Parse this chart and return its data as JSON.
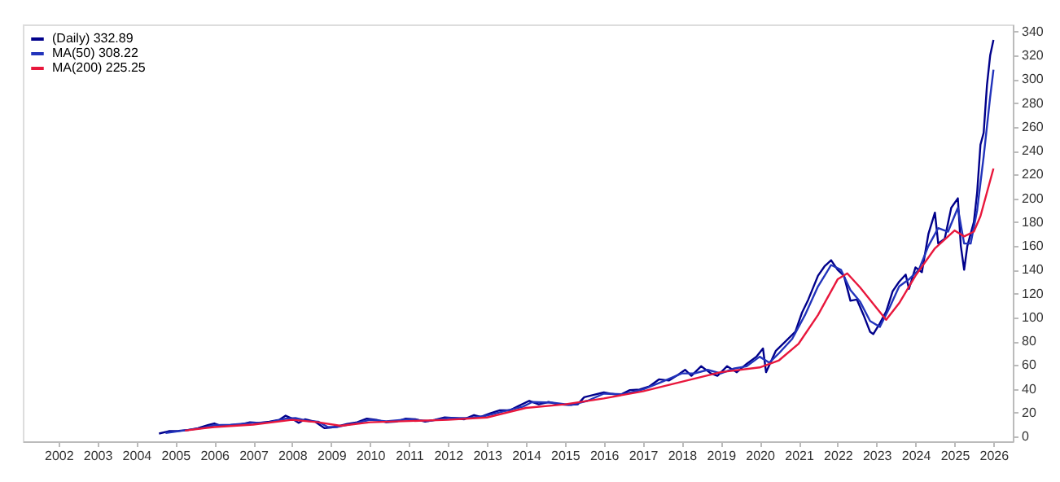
{
  "chart_data": {
    "type": "line",
    "legend": "top left",
    "xlim": [
      "2001-02",
      "2026-07"
    ],
    "ylim": [
      -4,
      346
    ],
    "xticks": [
      "2002",
      "2003",
      "2004",
      "2005",
      "2006",
      "2007",
      "2008",
      "2009",
      "2010",
      "2011",
      "2012",
      "2013",
      "2014",
      "2015",
      "2016",
      "2017",
      "2018",
      "2019",
      "2020",
      "2021",
      "2022",
      "2023",
      "2024",
      "2025",
      "2026"
    ],
    "yticks": [
      0,
      20,
      40,
      60,
      80,
      100,
      120,
      140,
      160,
      180,
      200,
      220,
      240,
      260,
      280,
      300,
      320,
      340
    ],
    "series": [
      {
        "name": "(Daily) 332.89",
        "color": "#00008b",
        "x": [
          "2004-08",
          "2004-11",
          "2005-02",
          "2005-05",
          "2005-08",
          "2005-11",
          "2006-01",
          "2006-03",
          "2006-06",
          "2006-09",
          "2006-12",
          "2007-03",
          "2007-06",
          "2007-09",
          "2007-11",
          "2008-01",
          "2008-03",
          "2008-05",
          "2008-08",
          "2008-11",
          "2009-01",
          "2009-03",
          "2009-06",
          "2009-09",
          "2009-12",
          "2010-03",
          "2010-06",
          "2010-09",
          "2010-12",
          "2011-03",
          "2011-06",
          "2011-09",
          "2011-12",
          "2012-03",
          "2012-06",
          "2012-09",
          "2012-11",
          "2013-02",
          "2013-05",
          "2013-08",
          "2013-11",
          "2014-02",
          "2014-05",
          "2014-08",
          "2014-11",
          "2015-02",
          "2015-05",
          "2015-07",
          "2015-10",
          "2016-01",
          "2016-03",
          "2016-06",
          "2016-09",
          "2016-12",
          "2017-03",
          "2017-06",
          "2017-09",
          "2017-12",
          "2018-02",
          "2018-04",
          "2018-07",
          "2018-10",
          "2018-12",
          "2019-03",
          "2019-06",
          "2019-09",
          "2019-12",
          "2020-02",
          "2020-03",
          "2020-06",
          "2020-09",
          "2020-12",
          "2021-02",
          "2021-04",
          "2021-07",
          "2021-09",
          "2021-11",
          "2022-01",
          "2022-03",
          "2022-05",
          "2022-07",
          "2022-09",
          "2022-11",
          "2022-12",
          "2023-02",
          "2023-04",
          "2023-06",
          "2023-08",
          "2023-10",
          "2023-11",
          "2024-01",
          "2024-03",
          "2024-05",
          "2024-07",
          "2024-08",
          "2024-10",
          "2024-12",
          "2025-02",
          "2025-03",
          "2025-04",
          "2025-05",
          "2025-07",
          "2025-08",
          "2025-09",
          "2025-10",
          "2025-11",
          "2025-12",
          "2026-01"
        ],
        "values": [
          2.5,
          4.5,
          4.8,
          5.5,
          7,
          9.5,
          11,
          9,
          9.5,
          10,
          12,
          11.5,
          12.5,
          14,
          17.5,
          15,
          11.5,
          14.5,
          12.5,
          7,
          7.5,
          8.5,
          10.5,
          12,
          15,
          14,
          12,
          12.5,
          15,
          14.5,
          12.5,
          14,
          16,
          15.5,
          14.5,
          18,
          16.5,
          19.5,
          22,
          22,
          26,
          30,
          27,
          29,
          27,
          26.5,
          27,
          33,
          35,
          37,
          36,
          35,
          39,
          39.5,
          42,
          48,
          47,
          52,
          56,
          51,
          59,
          53,
          51,
          59,
          54,
          61,
          67,
          74,
          54,
          72,
          80,
          88,
          104,
          115,
          135,
          143,
          148,
          140,
          135,
          114,
          115,
          102,
          88,
          86,
          95,
          105,
          122,
          130,
          136,
          124,
          142,
          138,
          170,
          188,
          162,
          166,
          192,
          200,
          160,
          140,
          160,
          180,
          205,
          245,
          255,
          295,
          320,
          333
        ]
      },
      {
        "name": "MA(50) 308.22",
        "color": "#2233bb",
        "x": [
          "2004-10",
          "2005-03",
          "2005-09",
          "2006-01",
          "2006-06",
          "2007-01",
          "2007-06",
          "2007-11",
          "2008-02",
          "2008-06",
          "2008-09",
          "2008-12",
          "2009-03",
          "2009-08",
          "2010-01",
          "2010-06",
          "2011-01",
          "2011-07",
          "2012-01",
          "2012-07",
          "2012-12",
          "2013-06",
          "2013-12",
          "2014-03",
          "2014-09",
          "2015-03",
          "2015-08",
          "2016-01",
          "2016-07",
          "2017-01",
          "2017-07",
          "2018-01",
          "2018-05",
          "2018-09",
          "2019-01",
          "2019-05",
          "2019-09",
          "2020-01",
          "2020-04",
          "2020-07",
          "2020-11",
          "2021-03",
          "2021-07",
          "2021-11",
          "2022-02",
          "2022-05",
          "2022-08",
          "2022-11",
          "2023-02",
          "2023-05",
          "2023-08",
          "2023-11",
          "2024-02",
          "2024-05",
          "2024-08",
          "2024-11",
          "2025-02",
          "2025-04",
          "2025-06",
          "2025-08",
          "2025-10",
          "2025-12",
          "2026-01"
        ],
        "values": [
          3,
          4.8,
          7,
          9.5,
          9.8,
          11.5,
          12,
          15,
          15.5,
          13,
          12.5,
          8,
          8,
          11,
          14,
          12.8,
          14.5,
          13,
          15.5,
          15.5,
          17,
          21,
          25,
          29,
          28.5,
          26.5,
          30,
          36,
          35.5,
          39.5,
          46,
          53,
          53,
          56,
          53,
          57,
          59,
          67,
          62,
          70,
          82,
          102,
          126,
          144,
          140,
          123,
          113,
          97,
          92,
          108,
          126,
          132,
          140,
          160,
          175,
          172,
          192,
          162,
          162,
          190,
          235,
          285,
          308
        ]
      },
      {
        "name": "MA(200) 225.25",
        "color": "#e8173c",
        "x": [
          "2005-04",
          "2006-01",
          "2007-01",
          "2008-01",
          "2008-09",
          "2009-04",
          "2010-01",
          "2011-01",
          "2012-01",
          "2013-01",
          "2014-01",
          "2015-01",
          "2016-01",
          "2017-01",
          "2018-01",
          "2019-01",
          "2020-01",
          "2020-07",
          "2021-01",
          "2021-07",
          "2022-01",
          "2022-04",
          "2022-08",
          "2023-01",
          "2023-04",
          "2023-08",
          "2024-01",
          "2024-07",
          "2025-01",
          "2025-04",
          "2025-07",
          "2025-09",
          "2025-11",
          "2026-01"
        ],
        "values": [
          5,
          8,
          10,
          14,
          12,
          9,
          12,
          13,
          14,
          16,
          24,
          27,
          32,
          38,
          46,
          54,
          58,
          64,
          78,
          102,
          132,
          137,
          125,
          108,
          98,
          112,
          135,
          158,
          173,
          168,
          172,
          185,
          205,
          225
        ]
      }
    ]
  }
}
